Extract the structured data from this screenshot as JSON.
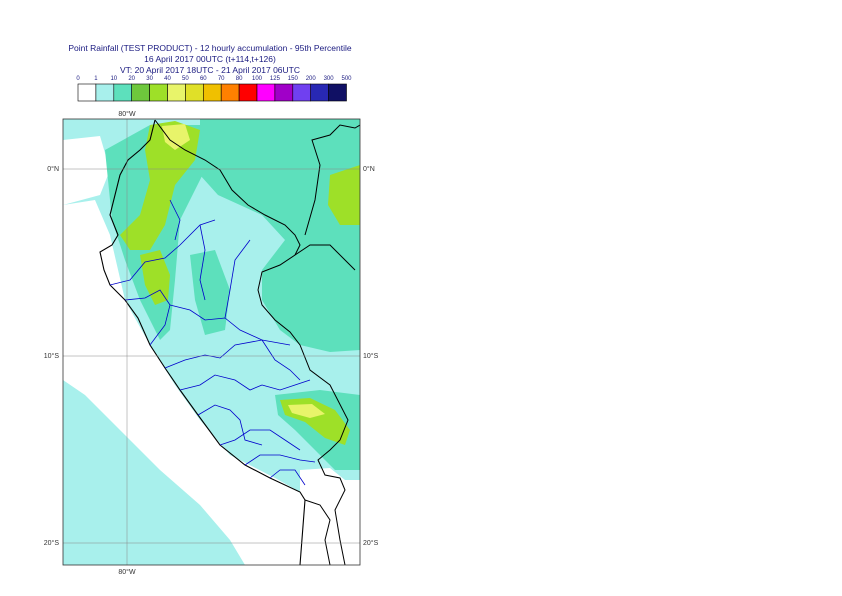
{
  "header": {
    "line1": "Point Rainfall (TEST PRODUCT) - 12 hourly accumulation - 95th Percentile",
    "line2": "16 April 2017 00UTC (t+114,t+126)",
    "line3": "VT: 20 April 2017 18UTC - 21 April 2017 06UTC"
  },
  "legend": {
    "thresholds": [
      "0",
      "1",
      "10",
      "20",
      "30",
      "40",
      "50",
      "60",
      "70",
      "80",
      "100",
      "125",
      "150",
      "200",
      "300",
      "500"
    ],
    "colors": [
      "#ffffff",
      "#a8f0ec",
      "#5de0bc",
      "#6ec83c",
      "#9ee028",
      "#e8f46a",
      "#e0e028",
      "#f0c000",
      "#ff8000",
      "#ff0000",
      "#ff00ff",
      "#a000c8",
      "#7040f0",
      "#2828b4",
      "#101064"
    ]
  },
  "map": {
    "lon_labels_top": [
      "80°W"
    ],
    "lon_labels_bottom": [
      "80°W"
    ],
    "lat_labels_left": [
      "0°N",
      "10°S",
      "20°S"
    ],
    "lat_labels_right": [
      "0°N",
      "10°S",
      "20°S"
    ],
    "ocean_color": "#a8f0ec",
    "land_light_color": "#a8f0ec",
    "land_medium_color": "#5de0bc",
    "heavy_color": "#9ee028",
    "peak_color": "#e8f46a",
    "country_border_color": "#000000",
    "admin_border_color": "#0000cc"
  }
}
